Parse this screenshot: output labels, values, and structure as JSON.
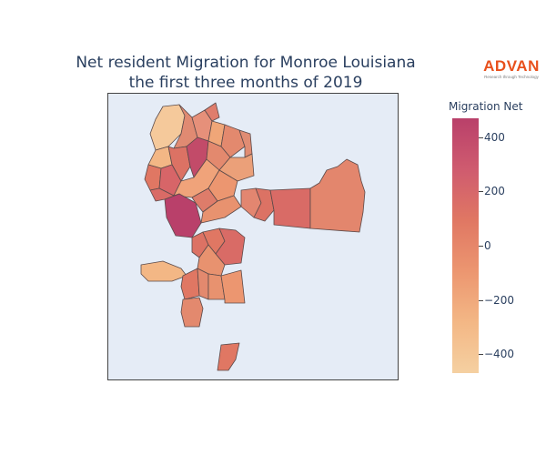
{
  "title": {
    "line1": "Net resident Migration for Monroe Louisiana",
    "line2": "the first three months of 2019"
  },
  "logo": {
    "word": "ADVAN",
    "tagline": "Research through Technology",
    "color": "#e8501c"
  },
  "colorbar": {
    "title": "Migration Net",
    "ticks": [
      {
        "value": 400,
        "label": "400"
      },
      {
        "value": 200,
        "label": "200"
      },
      {
        "value": 0,
        "label": "0"
      },
      {
        "value": -200,
        "label": "−200"
      },
      {
        "value": -400,
        "label": "−400"
      }
    ],
    "range": [
      -470,
      470
    ],
    "colors": [
      "#f5d0a1",
      "#f3b785",
      "#ec9670",
      "#e07763",
      "#cf5b6f",
      "#b9406a"
    ]
  },
  "map": {
    "background": "#e5ecf6",
    "border_color": "#444444"
  }
}
